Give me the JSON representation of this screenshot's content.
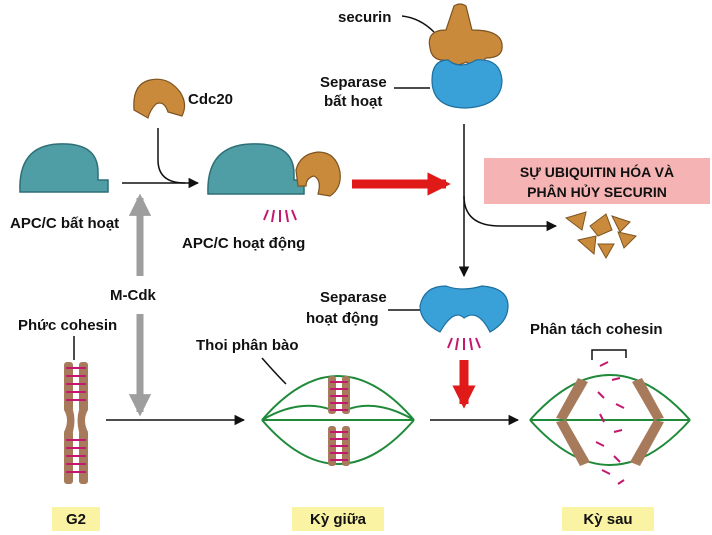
{
  "labels": {
    "securin": "securin",
    "separase_inactive_1": "Separase",
    "separase_inactive_2": "bất hoạt",
    "cdc20": "Cdc20",
    "apc_inactive": "APC/C bất hoạt",
    "apc_active": "APC/C hoạt động",
    "ubiquitin_1": "SỰ UBIQUITIN HÓA VÀ",
    "ubiquitin_2": "PHÂN HỦY SECURIN",
    "mcdk": "M-Cdk",
    "cohesin_complex": "Phức cohesin",
    "spindle": "Thoi phân bào",
    "separase_active_1": "Separase",
    "separase_active_2": "hoạt động",
    "cohesin_cleavage": "Phân tách cohesin"
  },
  "stages": {
    "g2": "G2",
    "metaphase": "Kỳ giữa",
    "anaphase": "Kỳ sau"
  },
  "colors": {
    "apc": "#4f9ea6",
    "cdc20": "#c98a3c",
    "securin": "#c98a3c",
    "separase": "#3aa0d8",
    "chromosome": "#a77a5b",
    "cohesin": "#c2186d",
    "spindle": "#1f8a3a",
    "red_arrow": "#e01919",
    "gray_arrow": "#9e9e9e",
    "banner": "#f6b3b3",
    "stage_box": "#fbf3a4"
  }
}
